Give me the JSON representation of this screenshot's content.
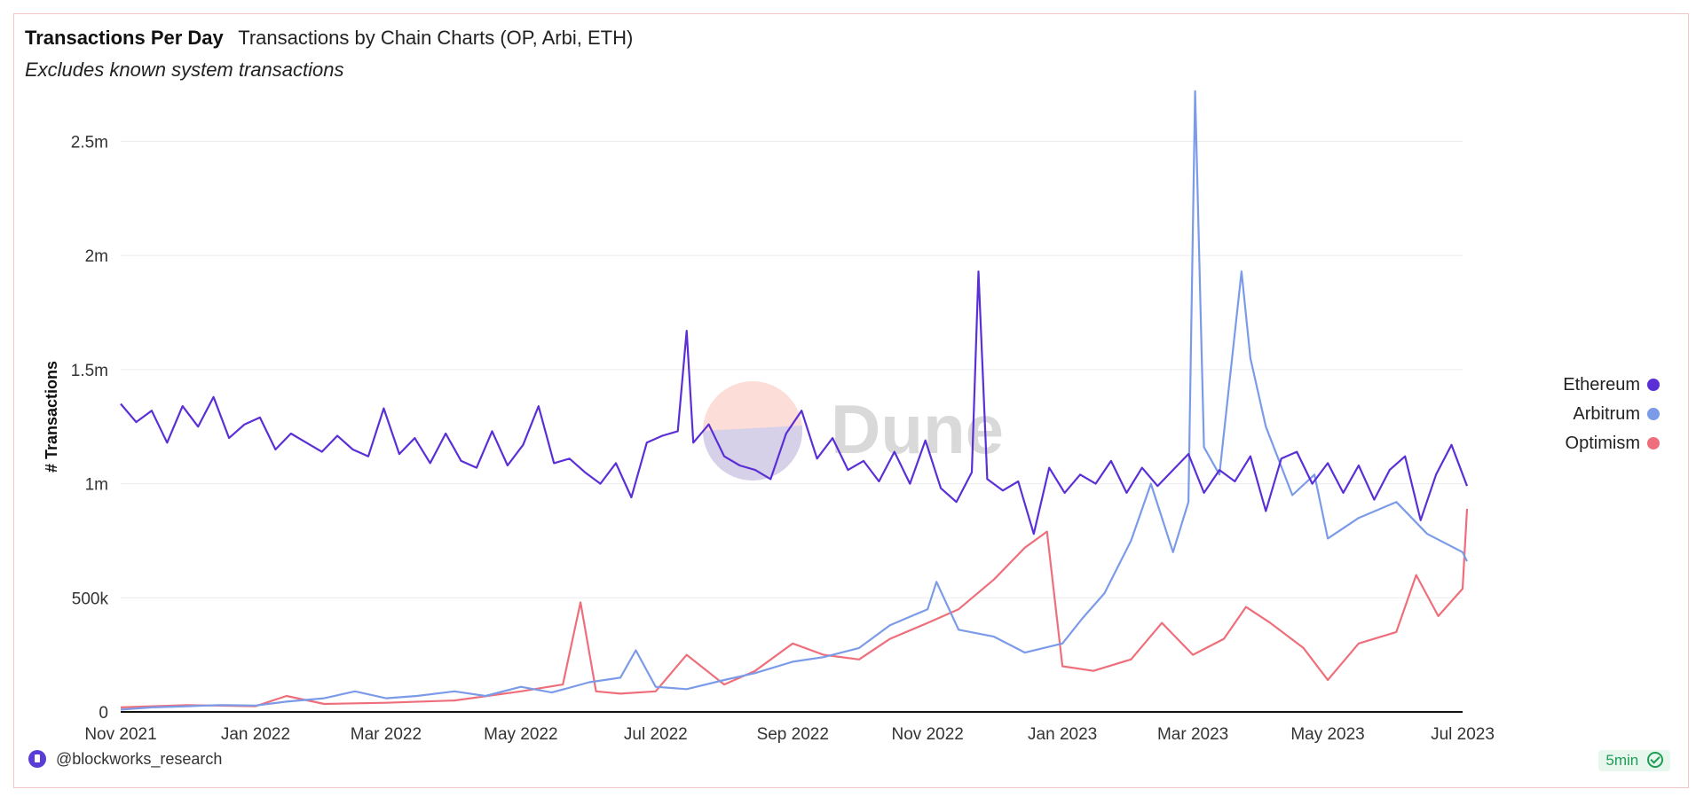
{
  "header": {
    "title": "Transactions Per Day",
    "subtitle": "Transactions by Chain Charts (OP, Arbi, ETH)",
    "note": "Excludes known system transactions"
  },
  "footer": {
    "user": "@blockworks_research",
    "refresh": "5min"
  },
  "watermark": {
    "text": "Dune"
  },
  "chart_data": {
    "type": "line",
    "ylabel": "# Transactions",
    "xlabel": "",
    "ylim": [
      0,
      2700000
    ],
    "grid": true,
    "legend_position": "right",
    "y_ticks": [
      {
        "value": 0,
        "label": "0"
      },
      {
        "value": 500000,
        "label": "500k"
      },
      {
        "value": 1000000,
        "label": "1m"
      },
      {
        "value": 1500000,
        "label": "1.5m"
      },
      {
        "value": 2000000,
        "label": "2m"
      },
      {
        "value": 2500000,
        "label": "2.5m"
      }
    ],
    "x_ticks": [
      {
        "date": "2021-11-01",
        "label": "Nov 2021"
      },
      {
        "date": "2022-01-01",
        "label": "Jan 2022"
      },
      {
        "date": "2022-03-01",
        "label": "Mar 2022"
      },
      {
        "date": "2022-05-01",
        "label": "May 2022"
      },
      {
        "date": "2022-07-01",
        "label": "Jul 2022"
      },
      {
        "date": "2022-09-01",
        "label": "Sep 2022"
      },
      {
        "date": "2022-11-01",
        "label": "Nov 2022"
      },
      {
        "date": "2023-01-01",
        "label": "Jan 2023"
      },
      {
        "date": "2023-03-01",
        "label": "Mar 2023"
      },
      {
        "date": "2023-05-01",
        "label": "May 2023"
      },
      {
        "date": "2023-07-01",
        "label": "Jul 2023"
      }
    ],
    "series": [
      {
        "name": "Ethereum",
        "color": "#5b2fd6",
        "points": [
          [
            "2021-11-01",
            1350000
          ],
          [
            "2021-11-08",
            1270000
          ],
          [
            "2021-11-15",
            1320000
          ],
          [
            "2021-11-22",
            1180000
          ],
          [
            "2021-11-29",
            1340000
          ],
          [
            "2021-12-06",
            1250000
          ],
          [
            "2021-12-13",
            1380000
          ],
          [
            "2021-12-20",
            1200000
          ],
          [
            "2021-12-27",
            1260000
          ],
          [
            "2022-01-03",
            1290000
          ],
          [
            "2022-01-10",
            1150000
          ],
          [
            "2022-01-17",
            1220000
          ],
          [
            "2022-01-24",
            1180000
          ],
          [
            "2022-01-31",
            1140000
          ],
          [
            "2022-02-07",
            1210000
          ],
          [
            "2022-02-14",
            1150000
          ],
          [
            "2022-02-21",
            1120000
          ],
          [
            "2022-02-28",
            1330000
          ],
          [
            "2022-03-07",
            1130000
          ],
          [
            "2022-03-14",
            1200000
          ],
          [
            "2022-03-21",
            1090000
          ],
          [
            "2022-03-28",
            1220000
          ],
          [
            "2022-04-04",
            1100000
          ],
          [
            "2022-04-11",
            1070000
          ],
          [
            "2022-04-18",
            1230000
          ],
          [
            "2022-04-25",
            1080000
          ],
          [
            "2022-05-02",
            1170000
          ],
          [
            "2022-05-09",
            1340000
          ],
          [
            "2022-05-16",
            1090000
          ],
          [
            "2022-05-23",
            1110000
          ],
          [
            "2022-05-30",
            1050000
          ],
          [
            "2022-06-06",
            1000000
          ],
          [
            "2022-06-13",
            1090000
          ],
          [
            "2022-06-20",
            940000
          ],
          [
            "2022-06-27",
            1180000
          ],
          [
            "2022-07-04",
            1210000
          ],
          [
            "2022-07-11",
            1230000
          ],
          [
            "2022-07-15",
            1670000
          ],
          [
            "2022-07-18",
            1180000
          ],
          [
            "2022-07-25",
            1260000
          ],
          [
            "2022-08-01",
            1120000
          ],
          [
            "2022-08-08",
            1080000
          ],
          [
            "2022-08-15",
            1060000
          ],
          [
            "2022-08-22",
            1020000
          ],
          [
            "2022-08-29",
            1220000
          ],
          [
            "2022-09-05",
            1320000
          ],
          [
            "2022-09-12",
            1110000
          ],
          [
            "2022-09-19",
            1200000
          ],
          [
            "2022-09-26",
            1060000
          ],
          [
            "2022-10-03",
            1100000
          ],
          [
            "2022-10-10",
            1010000
          ],
          [
            "2022-10-17",
            1140000
          ],
          [
            "2022-10-24",
            1000000
          ],
          [
            "2022-10-31",
            1190000
          ],
          [
            "2022-11-07",
            980000
          ],
          [
            "2022-11-14",
            920000
          ],
          [
            "2022-11-21",
            1050000
          ],
          [
            "2022-11-24",
            1930000
          ],
          [
            "2022-11-28",
            1020000
          ],
          [
            "2022-12-05",
            970000
          ],
          [
            "2022-12-12",
            1010000
          ],
          [
            "2022-12-19",
            780000
          ],
          [
            "2022-12-26",
            1070000
          ],
          [
            "2023-01-02",
            960000
          ],
          [
            "2023-01-09",
            1040000
          ],
          [
            "2023-01-16",
            1000000
          ],
          [
            "2023-01-23",
            1100000
          ],
          [
            "2023-01-30",
            960000
          ],
          [
            "2023-02-06",
            1070000
          ],
          [
            "2023-02-13",
            990000
          ],
          [
            "2023-02-20",
            1060000
          ],
          [
            "2023-02-27",
            1130000
          ],
          [
            "2023-03-06",
            960000
          ],
          [
            "2023-03-13",
            1060000
          ],
          [
            "2023-03-20",
            1010000
          ],
          [
            "2023-03-27",
            1120000
          ],
          [
            "2023-04-03",
            880000
          ],
          [
            "2023-04-10",
            1110000
          ],
          [
            "2023-04-17",
            1140000
          ],
          [
            "2023-04-24",
            1000000
          ],
          [
            "2023-05-01",
            1090000
          ],
          [
            "2023-05-08",
            960000
          ],
          [
            "2023-05-15",
            1080000
          ],
          [
            "2023-05-22",
            930000
          ],
          [
            "2023-05-29",
            1060000
          ],
          [
            "2023-06-05",
            1120000
          ],
          [
            "2023-06-12",
            840000
          ],
          [
            "2023-06-19",
            1040000
          ],
          [
            "2023-06-26",
            1170000
          ],
          [
            "2023-07-03",
            990000
          ]
        ]
      },
      {
        "name": "Arbitrum",
        "color": "#7b9be8",
        "points": [
          [
            "2021-11-01",
            10000
          ],
          [
            "2021-11-15",
            20000
          ],
          [
            "2021-12-01",
            25000
          ],
          [
            "2021-12-15",
            30000
          ],
          [
            "2022-01-01",
            28000
          ],
          [
            "2022-01-15",
            45000
          ],
          [
            "2022-02-01",
            60000
          ],
          [
            "2022-02-15",
            90000
          ],
          [
            "2022-03-01",
            60000
          ],
          [
            "2022-03-15",
            70000
          ],
          [
            "2022-04-01",
            90000
          ],
          [
            "2022-04-15",
            70000
          ],
          [
            "2022-05-01",
            110000
          ],
          [
            "2022-05-15",
            85000
          ],
          [
            "2022-06-01",
            130000
          ],
          [
            "2022-06-15",
            150000
          ],
          [
            "2022-06-22",
            270000
          ],
          [
            "2022-07-01",
            110000
          ],
          [
            "2022-07-15",
            100000
          ],
          [
            "2022-08-01",
            140000
          ],
          [
            "2022-08-15",
            170000
          ],
          [
            "2022-09-01",
            220000
          ],
          [
            "2022-09-15",
            240000
          ],
          [
            "2022-10-01",
            280000
          ],
          [
            "2022-10-15",
            380000
          ],
          [
            "2022-11-01",
            450000
          ],
          [
            "2022-11-05",
            570000
          ],
          [
            "2022-11-15",
            360000
          ],
          [
            "2022-12-01",
            330000
          ],
          [
            "2022-12-15",
            260000
          ],
          [
            "2023-01-01",
            300000
          ],
          [
            "2023-01-10",
            410000
          ],
          [
            "2023-01-20",
            520000
          ],
          [
            "2023-02-01",
            750000
          ],
          [
            "2023-02-10",
            1000000
          ],
          [
            "2023-02-20",
            700000
          ],
          [
            "2023-02-27",
            920000
          ],
          [
            "2023-03-02",
            2720000
          ],
          [
            "2023-03-06",
            1160000
          ],
          [
            "2023-03-13",
            1040000
          ],
          [
            "2023-03-23",
            1930000
          ],
          [
            "2023-03-27",
            1550000
          ],
          [
            "2023-04-03",
            1250000
          ],
          [
            "2023-04-15",
            950000
          ],
          [
            "2023-04-25",
            1040000
          ],
          [
            "2023-05-01",
            760000
          ],
          [
            "2023-05-15",
            850000
          ],
          [
            "2023-06-01",
            920000
          ],
          [
            "2023-06-15",
            780000
          ],
          [
            "2023-07-01",
            700000
          ],
          [
            "2023-07-03",
            660000
          ]
        ]
      },
      {
        "name": "Optimism",
        "color": "#ee6f7b",
        "points": [
          [
            "2021-11-01",
            20000
          ],
          [
            "2021-12-01",
            30000
          ],
          [
            "2022-01-01",
            25000
          ],
          [
            "2022-01-15",
            70000
          ],
          [
            "2022-02-01",
            35000
          ],
          [
            "2022-03-01",
            40000
          ],
          [
            "2022-04-01",
            50000
          ],
          [
            "2022-05-01",
            90000
          ],
          [
            "2022-05-20",
            120000
          ],
          [
            "2022-05-28",
            480000
          ],
          [
            "2022-06-04",
            90000
          ],
          [
            "2022-06-15",
            80000
          ],
          [
            "2022-07-01",
            90000
          ],
          [
            "2022-07-15",
            250000
          ],
          [
            "2022-08-01",
            120000
          ],
          [
            "2022-08-15",
            180000
          ],
          [
            "2022-09-01",
            300000
          ],
          [
            "2022-09-15",
            250000
          ],
          [
            "2022-10-01",
            230000
          ],
          [
            "2022-10-15",
            320000
          ],
          [
            "2022-11-01",
            390000
          ],
          [
            "2022-11-15",
            450000
          ],
          [
            "2022-12-01",
            580000
          ],
          [
            "2022-12-15",
            720000
          ],
          [
            "2022-12-25",
            790000
          ],
          [
            "2023-01-01",
            200000
          ],
          [
            "2023-01-15",
            180000
          ],
          [
            "2023-02-01",
            230000
          ],
          [
            "2023-02-15",
            390000
          ],
          [
            "2023-03-01",
            250000
          ],
          [
            "2023-03-15",
            320000
          ],
          [
            "2023-03-25",
            460000
          ],
          [
            "2023-04-05",
            390000
          ],
          [
            "2023-04-20",
            280000
          ],
          [
            "2023-05-01",
            140000
          ],
          [
            "2023-05-15",
            300000
          ],
          [
            "2023-06-01",
            350000
          ],
          [
            "2023-06-10",
            600000
          ],
          [
            "2023-06-20",
            420000
          ],
          [
            "2023-07-01",
            540000
          ],
          [
            "2023-07-03",
            890000
          ]
        ]
      }
    ]
  }
}
